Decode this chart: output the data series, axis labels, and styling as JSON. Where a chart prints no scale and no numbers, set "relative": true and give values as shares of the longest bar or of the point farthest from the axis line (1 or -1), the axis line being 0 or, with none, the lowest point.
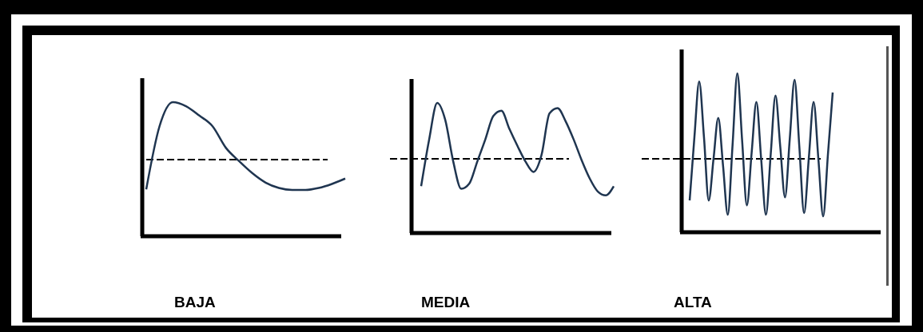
{
  "chart_data": [
    {
      "type": "line",
      "relative": true,
      "xlabel": "BAJA",
      "categories": [
        null,
        null,
        null,
        null,
        null,
        null,
        null,
        null,
        null,
        null,
        null,
        null,
        null,
        null,
        null,
        null
      ],
      "series": [
        {
          "color": "#1f3550",
          "values": [
            0.35,
            0.82,
            1.0,
            0.97,
            0.9,
            0.82,
            0.66,
            0.56,
            0.47,
            0.4,
            0.36,
            0.345,
            0.345,
            0.36,
            0.39,
            0.43
          ]
        }
      ],
      "ref_lines": [
        {
          "axis": "y",
          "value": 0.571,
          "line_style": "dashed",
          "color": "#000000"
        }
      ]
    },
    {
      "type": "line",
      "relative": true,
      "xlabel": "MEDIA",
      "categories": [
        null,
        null,
        null,
        null,
        null,
        null,
        null,
        null,
        null,
        null,
        null,
        null,
        null,
        null,
        null,
        null,
        null,
        null,
        null,
        null,
        null,
        null,
        null,
        null,
        null
      ],
      "series": [
        {
          "color": "#1f3550",
          "values": [
            0.36,
            0.72,
            1.0,
            0.87,
            0.55,
            0.34,
            0.38,
            0.55,
            0.72,
            0.9,
            0.94,
            0.8,
            0.67,
            0.55,
            0.47,
            0.6,
            0.92,
            0.96,
            0.86,
            0.72,
            0.56,
            0.42,
            0.32,
            0.29,
            0.36
          ]
        }
      ],
      "ref_lines": [
        {
          "axis": "y",
          "value": 0.571,
          "line_style": "dashed",
          "color": "#000000"
        }
      ]
    },
    {
      "type": "line",
      "relative": true,
      "xlabel": "ALTA",
      "categories": [
        null,
        null,
        null,
        null,
        null,
        null,
        null,
        null,
        null,
        null,
        null,
        null,
        null,
        null,
        null,
        null,
        null,
        null,
        null,
        null,
        null,
        null,
        null,
        null,
        null,
        null,
        null,
        null,
        null,
        null,
        null
      ],
      "series": [
        {
          "color": "#1f3550",
          "values": [
            0.2,
            0.6,
            0.95,
            0.6,
            0.2,
            0.46,
            0.72,
            0.42,
            0.11,
            0.55,
            1.0,
            0.58,
            0.17,
            0.5,
            0.82,
            0.46,
            0.11,
            0.49,
            0.86,
            0.54,
            0.22,
            0.59,
            0.96,
            0.54,
            0.12,
            0.47,
            0.82,
            0.46,
            0.1,
            0.49,
            0.88
          ]
        }
      ],
      "ref_lines": [
        {
          "axis": "y",
          "value": 0.462,
          "line_style": "dashed",
          "color": "#000000"
        }
      ]
    }
  ]
}
